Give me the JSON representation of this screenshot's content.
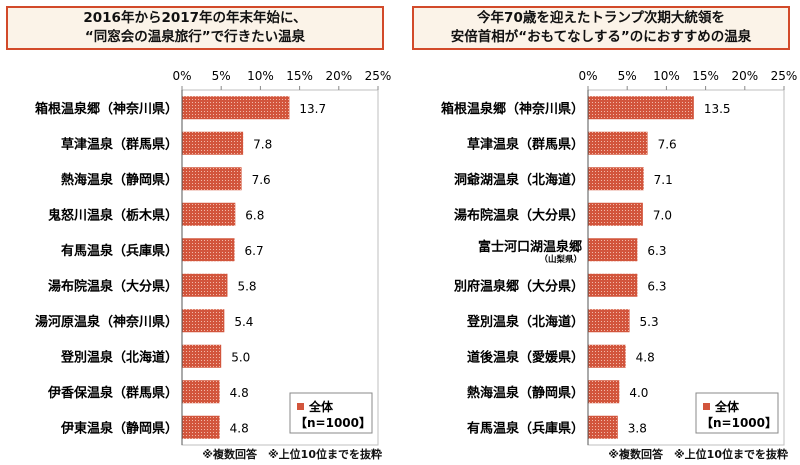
{
  "chart_data": [
    {
      "type": "bar",
      "orientation": "horizontal",
      "title_lines": [
        "2016年から2017年の年末年始に、",
        "“同窓会の温泉旅行”で行きたい温泉"
      ],
      "categories": [
        {
          "name": "箱根温泉郷",
          "pref": "（神奈川県）"
        },
        {
          "name": "草津温泉",
          "pref": "（群馬県）"
        },
        {
          "name": "熱海温泉",
          "pref": "（静岡県）"
        },
        {
          "name": "鬼怒川温泉",
          "pref": "（栃木県）"
        },
        {
          "name": "有馬温泉",
          "pref": "（兵庫県）"
        },
        {
          "name": "湯布院温泉",
          "pref": "（大分県）"
        },
        {
          "name": "湯河原温泉",
          "pref": "（神奈川県）"
        },
        {
          "name": "登別温泉",
          "pref": "（北海道）"
        },
        {
          "name": "伊香保温泉",
          "pref": "（群馬県）"
        },
        {
          "name": "伊東温泉",
          "pref": "（静岡県）"
        }
      ],
      "series": [
        {
          "name": "全体",
          "values": [
            13.7,
            7.8,
            7.6,
            6.8,
            6.7,
            5.8,
            5.4,
            5.0,
            4.8,
            4.8
          ]
        }
      ],
      "value_labels": [
        "13.7",
        "7.8",
        "7.6",
        "6.8",
        "6.7",
        "5.8",
        "5.4",
        "5.0",
        "4.8",
        "4.8"
      ],
      "xlim": [
        0,
        25
      ],
      "ticks": [
        "0%",
        "5%",
        "10%",
        "15%",
        "20%",
        "25%"
      ],
      "legend": {
        "label": "全体",
        "n": "【n=1000】",
        "placement": "bottom-right"
      },
      "footnote": "※複数回答　※上位10位までを抜粋"
    },
    {
      "type": "bar",
      "orientation": "horizontal",
      "title_lines": [
        "今年70歳を迎えたトランプ次期大統領を",
        "安倍首相が“おもてなしする”のにおすすめの温泉"
      ],
      "categories": [
        {
          "name": "箱根温泉郷",
          "pref": "（神奈川県）"
        },
        {
          "name": "草津温泉",
          "pref": "（群馬県）"
        },
        {
          "name": "洞爺湖温泉",
          "pref": "（北海道）"
        },
        {
          "name": "湯布院温泉",
          "pref": "（大分県）"
        },
        {
          "name": "富士河口湖温泉郷",
          "pref": "（山梨県）",
          "small": true
        },
        {
          "name": "別府温泉郷",
          "pref": "（大分県）"
        },
        {
          "name": "登別温泉",
          "pref": "（北海道）"
        },
        {
          "name": "道後温泉",
          "pref": "（愛媛県）"
        },
        {
          "name": "熱海温泉",
          "pref": "（静岡県）"
        },
        {
          "name": "有馬温泉",
          "pref": "（兵庫県）"
        }
      ],
      "series": [
        {
          "name": "全体",
          "values": [
            13.5,
            7.6,
            7.1,
            7.0,
            6.3,
            6.3,
            5.3,
            4.8,
            4.0,
            3.8
          ]
        }
      ],
      "value_labels": [
        "13.5",
        "7.6",
        "7.1",
        "7.0",
        "6.3",
        "6.3",
        "5.3",
        "4.8",
        "4.0",
        "3.8"
      ],
      "xlim": [
        0,
        25
      ],
      "ticks": [
        "0%",
        "5%",
        "10%",
        "15%",
        "20%",
        "25%"
      ],
      "legend": {
        "label": "全体",
        "n": "【n=1000】",
        "placement": "bottom-right"
      },
      "footnote": "※複数回答　※上位10位までを抜粋"
    }
  ],
  "colors": {
    "bar": "#d2553c",
    "title_border": "#d24a2a",
    "title_bg": "#fbf3e8"
  }
}
